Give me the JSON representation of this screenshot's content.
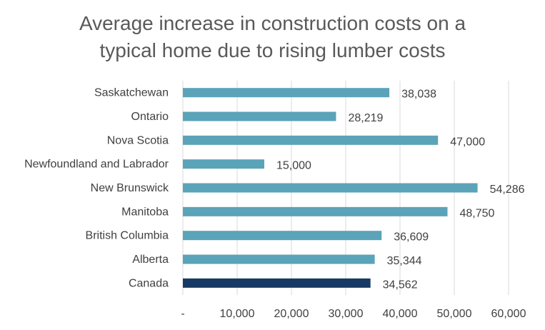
{
  "chart_data": {
    "type": "bar",
    "orientation": "horizontal",
    "title_lines": [
      "Average increase in construction costs on a",
      "typical home due to rising lumber costs"
    ],
    "categories": [
      "Saskatchewan",
      "Ontario",
      "Nova Scotia",
      "Newfoundland and Labrador",
      "New Brunswick",
      "Manitoba",
      "British Columbia",
      "Alberta",
      "Canada"
    ],
    "values": [
      38038,
      28219,
      47000,
      15000,
      54286,
      48750,
      36609,
      35344,
      34562
    ],
    "value_labels": [
      "38,038",
      "28,219",
      "47,000",
      "15,000",
      "54,286",
      "48,750",
      "36,609",
      "35,344",
      "34,562"
    ],
    "highlight_category": "Canada",
    "xticks": [
      "-",
      "10,000",
      "20,000",
      "30,000",
      "40,000",
      "50,000",
      "60,000"
    ],
    "xtick_values": [
      0,
      10000,
      20000,
      30000,
      40000,
      50000,
      60000
    ],
    "xlim": [
      0,
      60000
    ],
    "xlabel": "",
    "ylabel": "",
    "grid": true,
    "legend": "none",
    "colors": {
      "bar": "#5BA3B8",
      "highlight": "#163A63",
      "grid": "#D9D9D9"
    }
  }
}
